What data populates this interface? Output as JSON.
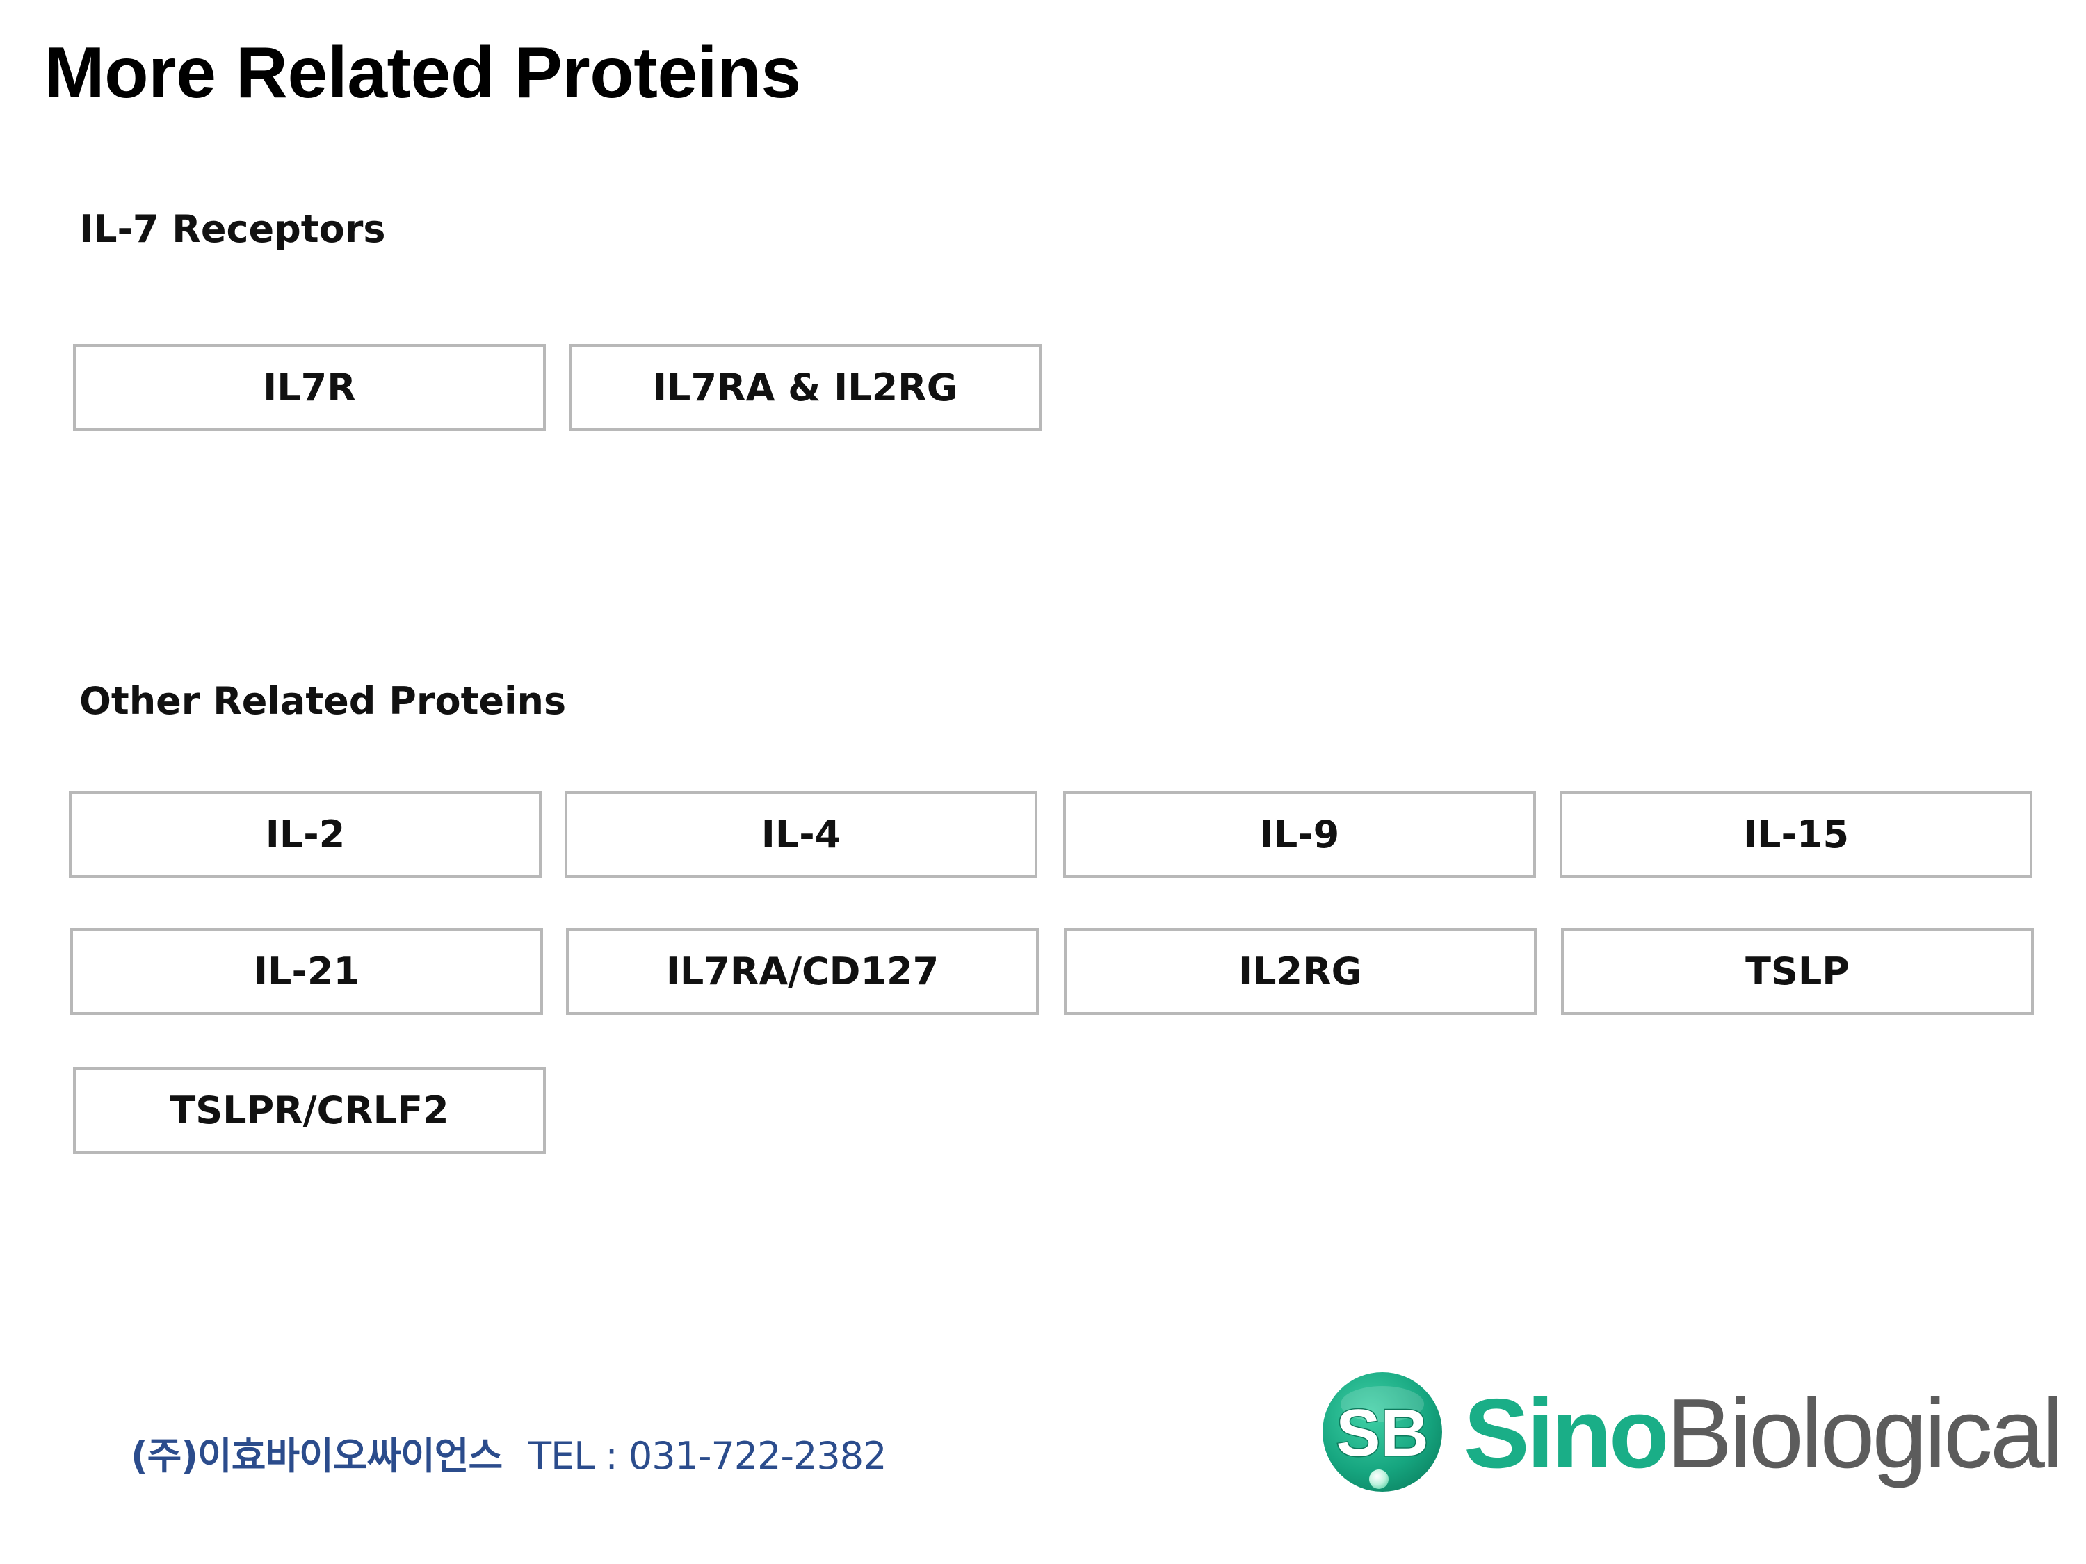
{
  "page": {
    "title": "More Related Proteins"
  },
  "sections": {
    "receptors": {
      "heading": "IL-7 Receptors",
      "items": [
        "IL7R",
        "IL7RA & IL2RG"
      ]
    },
    "other": {
      "heading": "Other Related Proteins",
      "items": [
        "IL-2",
        "IL-4",
        "IL-9",
        "IL-15",
        "IL-21",
        "IL7RA/CD127",
        "IL2RG",
        "TSLP",
        "TSLPR/CRLF2"
      ]
    }
  },
  "footer": {
    "company": "(주)이효바이오싸이언스",
    "tel": "TEL : 031-722-2382"
  },
  "logo": {
    "mark": "SB",
    "brand_part1": "Sino",
    "brand_part2": "Biological",
    "brand_color": "#1aae87",
    "secondary_color": "#5c5c5c"
  },
  "colors": {
    "button_border": "#b8b8b8",
    "contact_text": "#2b4c8c"
  }
}
